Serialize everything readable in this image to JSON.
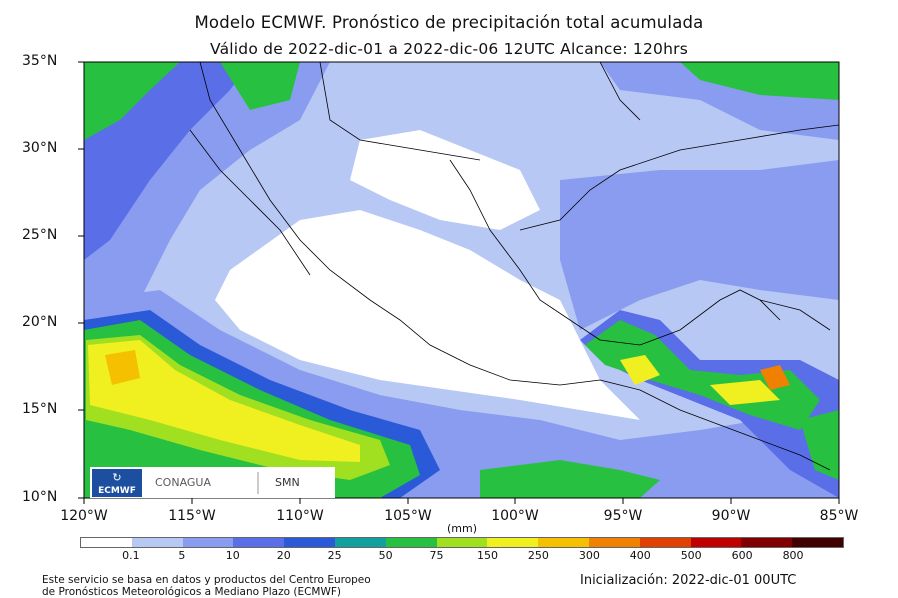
{
  "title": "Modelo ECMWF. Pronóstico de precipitación total acumulada",
  "subtitle": "Válido de 2022-dic-01 a 2022-dic-06 12UTC   Alcance: 120hrs",
  "lat_labels": [
    "35°N",
    "30°N",
    "25°N",
    "20°N",
    "15°N",
    "10°N"
  ],
  "lon_labels": [
    "120°W",
    "115°W",
    "110°W",
    "105°W",
    "100°W",
    "95°W",
    "90°W",
    "85°W"
  ],
  "units": "(mm)",
  "colorbar": {
    "ticks": [
      "0.1",
      "5",
      "10",
      "20",
      "25",
      "50",
      "75",
      "150",
      "250",
      "300",
      "400",
      "500",
      "600",
      "800"
    ],
    "colors": [
      "#ffffff",
      "#b8c8f5",
      "#8a9cf0",
      "#5a6ee8",
      "#2a5ad8",
      "#10a0a0",
      "#28c040",
      "#a0e020",
      "#f0f020",
      "#f5c000",
      "#f08000",
      "#e04000",
      "#c00000",
      "#800000",
      "#400000"
    ]
  },
  "logos": {
    "ecmwf": "ECMWF",
    "conagua": "CONAGUA",
    "smn": "SMN"
  },
  "footer_left": [
    "Este servicio se basa en datos y productos del Centro Europeo",
    "de Pronósticos Meteorológicos a Mediano Plazo (ECMWF)"
  ],
  "footer_right": "Inicialización: 2022-dic-01 00UTC"
}
